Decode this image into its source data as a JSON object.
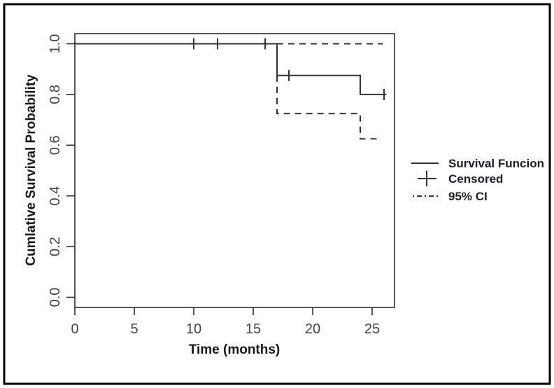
{
  "figure": {
    "background_color": "#ffffff",
    "border_color": "#000000"
  },
  "chart_data": {
    "type": "line",
    "subtype": "kaplan-meier-step-function",
    "title": "",
    "xlabel": "Time (months)",
    "ylabel": "Cumlative Survival Probability",
    "xlim": [
      0,
      27
    ],
    "ylim": [
      0,
      1
    ],
    "grid": false,
    "x_tick_values": [
      0,
      5,
      10,
      15,
      20,
      25
    ],
    "x_tick_labels": [
      "0",
      "5",
      "10",
      "15",
      "20",
      "25"
    ],
    "y_tick_values": [
      1.0,
      0.8,
      0.6,
      0.4,
      0.2,
      0.0
    ],
    "y_tick_labels": [
      "1.0",
      "0.8",
      "0.6",
      "0.4",
      "0.2",
      "0.0"
    ],
    "series": [
      {
        "name": "Survival Funcion",
        "style": "solid",
        "points": [
          [
            0,
            1.0
          ],
          [
            17,
            1.0
          ],
          [
            17,
            0.875
          ],
          [
            24,
            0.875
          ],
          [
            24,
            0.8
          ],
          [
            26.2,
            0.8
          ]
        ]
      },
      {
        "name": "95% CI upper",
        "style": "dashed",
        "points": [
          [
            17,
            1.0
          ],
          [
            25.9,
            1.0
          ]
        ]
      },
      {
        "name": "95% CI lower",
        "style": "dashed",
        "points": [
          [
            17,
            0.875
          ],
          [
            17,
            0.725
          ],
          [
            24,
            0.725
          ],
          [
            24,
            0.625
          ],
          [
            25.7,
            0.625
          ]
        ]
      }
    ],
    "censored_points": [
      [
        10,
        1.0
      ],
      [
        12,
        1.0
      ],
      [
        16,
        1.0
      ],
      [
        18,
        0.875
      ],
      [
        26,
        0.8
      ]
    ],
    "legend": {
      "position": "right-outside",
      "items": [
        {
          "label": "Survival Funcion",
          "marker": "solid-line"
        },
        {
          "label": "Censored",
          "marker": "plus"
        },
        {
          "label": "95% CI",
          "marker": "dashed-line"
        }
      ]
    }
  }
}
